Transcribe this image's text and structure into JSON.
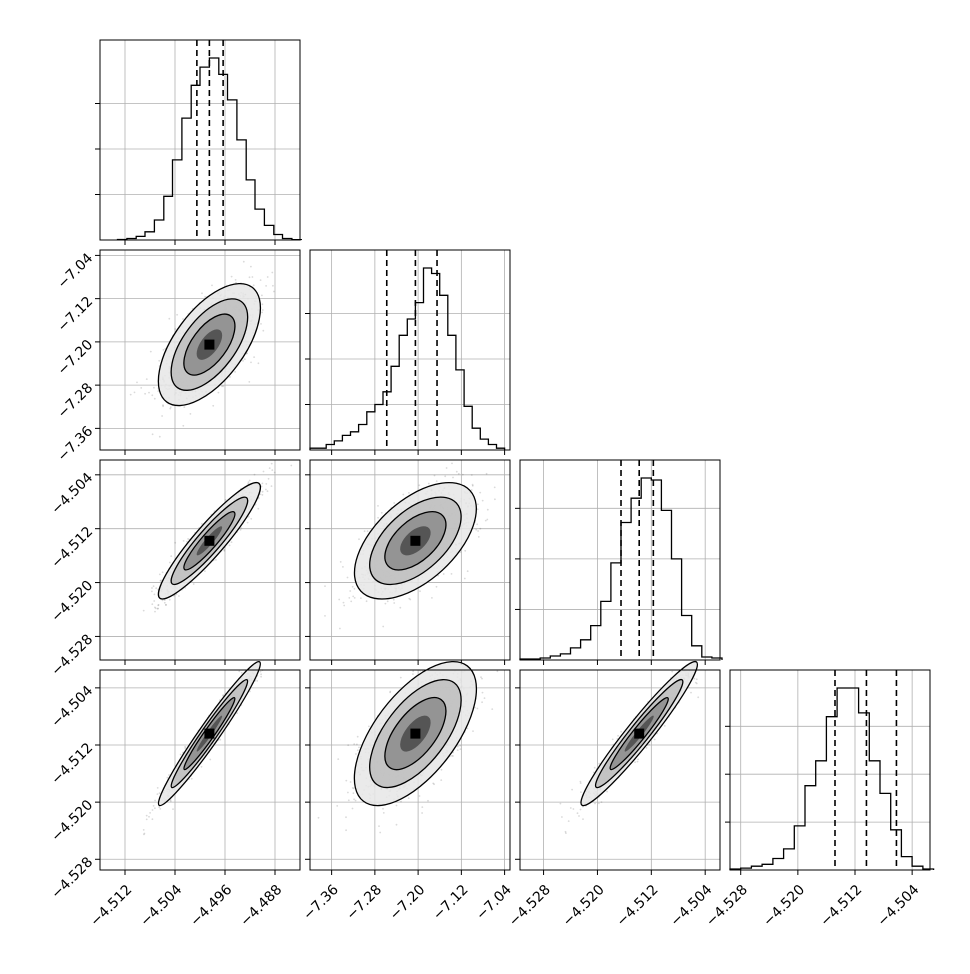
{
  "figure": {
    "colors": {
      "background": "#ffffff",
      "line": "#000000",
      "grid": "#b0b0b0",
      "density_dark": "#000000",
      "density_light": "#f2f2f2",
      "scatter": "#555555"
    }
  },
  "chart_data": {
    "type": "corner",
    "grid": true,
    "quantile_lines": "dashed",
    "contour_levels": 3,
    "parameters": [
      {
        "range": [
          -4.516,
          -4.484
        ],
        "ticks": [
          -4.512,
          -4.504,
          -4.496,
          -4.488
        ],
        "tick_labels": [
          "−4.512",
          "−4.504",
          "−4.496",
          "−4.488"
        ]
      },
      {
        "range": [
          -7.4,
          -7.03
        ],
        "ticks": [
          -7.36,
          -7.28,
          -7.2,
          -7.12,
          -7.04
        ],
        "tick_labels": [
          "−7.36",
          "−7.28",
          "−7.20",
          "−7.12",
          "−7.04"
        ]
      },
      {
        "range": [
          -4.5315,
          -4.5018
        ],
        "ticks": [
          -4.528,
          -4.52,
          -4.512,
          -4.504
        ],
        "tick_labels": [
          "−4.528",
          "−4.520",
          "−4.512",
          "−4.504"
        ]
      },
      {
        "range": [
          -4.5295,
          -4.5015
        ],
        "ticks": [
          -4.528,
          -4.52,
          -4.512,
          -4.504
        ],
        "tick_labels": [
          "−4.528",
          "−4.520",
          "−4.512",
          "−4.504"
        ]
      }
    ],
    "marginals": [
      {
        "param": 0,
        "quantiles": [
          -4.5005,
          -4.4985,
          -4.4963
        ],
        "bin_edges": [
          -4.5132,
          -4.5117,
          -4.5102,
          -4.5088,
          -4.5073,
          -4.5058,
          -4.5044,
          -4.5029,
          -4.5014,
          -4.5,
          -4.4985,
          -4.497,
          -4.4956,
          -4.4941,
          -4.4926,
          -4.4912,
          -4.4897,
          -4.4882,
          -4.4868,
          -4.4853,
          -4.4838
        ],
        "counts": [
          0.3,
          0.8,
          2.0,
          4.5,
          11,
          24,
          44,
          67,
          85,
          95,
          100,
          91,
          77,
          55,
          33,
          17,
          8,
          3,
          0.8,
          0.2
        ]
      },
      {
        "param": 1,
        "quantiles": [
          -7.258,
          -7.205,
          -7.165
        ],
        "bin_edges": [
          -7.4,
          -7.385,
          -7.37,
          -7.355,
          -7.34,
          -7.325,
          -7.31,
          -7.295,
          -7.28,
          -7.265,
          -7.25,
          -7.235,
          -7.22,
          -7.205,
          -7.19,
          -7.175,
          -7.16,
          -7.145,
          -7.13,
          -7.115,
          -7.1,
          -7.085,
          -7.07,
          -7.055,
          -7.04
        ],
        "counts": [
          1,
          1,
          3,
          5,
          8,
          10,
          14,
          21,
          25,
          32,
          46,
          63,
          72,
          81,
          100,
          97,
          85,
          63,
          44,
          24,
          12,
          6,
          3,
          1
        ]
      },
      {
        "param": 2,
        "quantiles": [
          -4.5165,
          -4.5138,
          -4.5117
        ],
        "bin_edges": [
          -4.5315,
          -4.53,
          -4.5285,
          -4.527,
          -4.5255,
          -4.524,
          -4.5225,
          -4.521,
          -4.5195,
          -4.518,
          -4.5165,
          -4.515,
          -4.5135,
          -4.512,
          -4.5105,
          -4.509,
          -4.5075,
          -4.506,
          -4.5045,
          -4.503,
          -4.5015
        ],
        "counts": [
          0.5,
          0.5,
          1,
          2,
          3,
          6,
          10,
          17,
          29,
          48,
          68,
          80,
          90,
          89,
          74,
          50,
          22,
          7,
          1.5,
          1
        ]
      },
      {
        "param": 3,
        "quantiles": [
          -4.5148,
          -4.5104,
          -4.5062
        ],
        "bin_edges": [
          -4.5295,
          -4.528,
          -4.5265,
          -4.525,
          -4.5235,
          -4.522,
          -4.5205,
          -4.519,
          -4.5175,
          -4.516,
          -4.5145,
          -4.513,
          -4.5115,
          -4.51,
          -4.5085,
          -4.507,
          -4.5055,
          -4.504,
          -4.5025,
          -4.501
        ],
        "counts": [
          0.5,
          1,
          2,
          3,
          6,
          11,
          23,
          44,
          57,
          80,
          95,
          95,
          82,
          57,
          40,
          21,
          7,
          2,
          0.5
        ]
      }
    ],
    "joints": [
      {
        "x_param": 0,
        "y_param": 1,
        "mean": [
          -4.4985,
          -7.205
        ],
        "std": [
          0.0034,
          0.047
        ],
        "corr": 0.6
      },
      {
        "x_param": 0,
        "y_param": 2,
        "mean": [
          -4.4985,
          -4.5138
        ],
        "std": [
          0.0034,
          0.0036
        ],
        "corr": 0.92
      },
      {
        "x_param": 1,
        "y_param": 2,
        "mean": [
          -7.205,
          -4.5138
        ],
        "std": [
          0.047,
          0.0036
        ],
        "corr": 0.55
      },
      {
        "x_param": 0,
        "y_param": 3,
        "mean": [
          -4.4985,
          -4.5104
        ],
        "std": [
          0.0034,
          0.0042
        ],
        "corr": 0.97
      },
      {
        "x_param": 1,
        "y_param": 3,
        "mean": [
          -7.205,
          -4.5104
        ],
        "std": [
          0.047,
          0.0042
        ],
        "corr": 0.62
      },
      {
        "x_param": 2,
        "y_param": 3,
        "mean": [
          -4.5138,
          -4.5104
        ],
        "std": [
          0.0036,
          0.0042
        ],
        "corr": 0.96
      }
    ]
  }
}
